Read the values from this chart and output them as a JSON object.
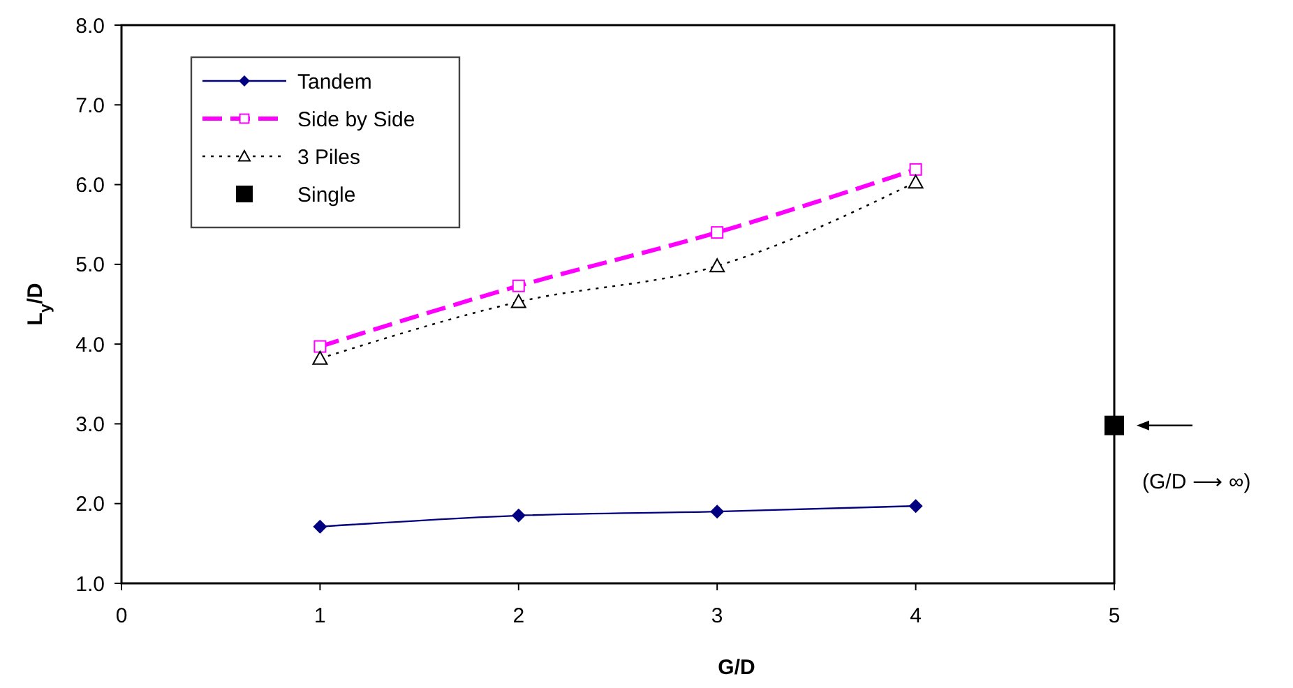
{
  "chart_data": {
    "type": "line",
    "xlabel": "G/D",
    "ylabel": "L$_{y}$/D",
    "xlim": [
      0,
      5
    ],
    "xticks": [
      0,
      1,
      2,
      3,
      4,
      5
    ],
    "ylim": [
      1,
      8
    ],
    "yticks": [
      {
        "value": 1,
        "label": "1.0"
      },
      {
        "value": 2,
        "label": "2.0"
      },
      {
        "value": 3,
        "label": "3.0"
      },
      {
        "value": 4,
        "label": "4.0"
      },
      {
        "value": 5,
        "label": "5.0"
      },
      {
        "value": 6,
        "label": "6.0"
      },
      {
        "value": 7,
        "label": "7.0"
      },
      {
        "value": 8,
        "label": "8.0"
      }
    ],
    "grid": false,
    "legend": "top left",
    "annotations": [
      "(G/D ⟶ ∞)"
    ],
    "series": [
      {
        "name": "Tandem",
        "color": "#000080",
        "x": [
          1,
          2,
          3,
          4
        ],
        "values": [
          1.71,
          1.85,
          1.9,
          1.97
        ],
        "marker": "diamond",
        "line_style": "solid"
      },
      {
        "name": "Side by Side",
        "color": "#ff00ff",
        "x": [
          1,
          2,
          3,
          4
        ],
        "values": [
          3.97,
          4.73,
          5.4,
          6.19
        ],
        "marker": "square",
        "line_style": "dashed"
      },
      {
        "name": "3 Piles",
        "color": "#000000",
        "x": [
          1,
          2,
          3,
          4
        ],
        "values": [
          3.82,
          4.53,
          4.98,
          6.03
        ],
        "marker": "triangle",
        "line_style": "dotted"
      },
      {
        "name": "Single",
        "color": "#000000",
        "type": "scatter",
        "x": [
          5
        ],
        "values": [
          2.98
        ],
        "marker": "square"
      }
    ]
  }
}
